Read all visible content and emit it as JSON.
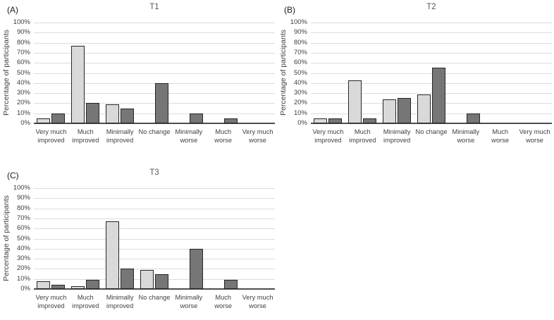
{
  "figure": {
    "background": "#ffffff",
    "colors": {
      "series_light_fill": "#d9d9d9",
      "series_dark_fill": "#767676",
      "bar_border": "#262626",
      "gridline": "#dcdcdc",
      "axis_line": "#4d4d4d",
      "title_color": "#595959",
      "text_color": "#404040"
    }
  },
  "chart_data": [
    {
      "type": "bar",
      "panel_label": "(A)",
      "title": "T1",
      "ylabel": "Percentage of participants",
      "xlabel": "",
      "ylim": [
        0,
        100
      ],
      "grid": true,
      "legend": "none",
      "y_ticks": [
        "0%",
        "10%",
        "20%",
        "30%",
        "40%",
        "50%",
        "60%",
        "70%",
        "80%",
        "90%",
        "100%"
      ],
      "categories": [
        "Very much improved",
        "Much improved",
        "Minimally improved",
        "No change",
        "Minimally worse",
        "Much worse",
        "Very much worse"
      ],
      "category_label_lines": [
        [
          "Very much",
          "improved"
        ],
        [
          "Much",
          "improved"
        ],
        [
          "Minimally",
          "improved"
        ],
        [
          "No change"
        ],
        [
          "Minimally",
          "worse"
        ],
        [
          "Much",
          "worse"
        ],
        [
          "Very much",
          "worse"
        ]
      ],
      "series": [
        {
          "name": "group-light-gray",
          "fill": "#d9d9d9",
          "values": [
            5,
            77,
            19,
            0,
            0,
            0,
            0
          ]
        },
        {
          "name": "group-dark-gray",
          "fill": "#767676",
          "values": [
            10,
            20,
            15,
            40,
            10,
            5,
            0
          ]
        }
      ]
    },
    {
      "type": "bar",
      "panel_label": "(B)",
      "title": "T2",
      "ylabel": "Percentage of participants",
      "xlabel": "",
      "ylim": [
        0,
        100
      ],
      "grid": true,
      "legend": "none",
      "y_ticks": [
        "0%",
        "10%",
        "20%",
        "30%",
        "40%",
        "50%",
        "60%",
        "70%",
        "80%",
        "90%",
        "100%"
      ],
      "categories": [
        "Very much improved",
        "Much improved",
        "Minimally improved",
        "No change",
        "Minimally worse",
        "Much worse",
        "Very much worse"
      ],
      "category_label_lines": [
        [
          "Very much",
          "improved"
        ],
        [
          "Much",
          "improved"
        ],
        [
          "Minimally",
          "improved"
        ],
        [
          "No change"
        ],
        [
          "Minimally",
          "worse"
        ],
        [
          "Much",
          "worse"
        ],
        [
          "Very much",
          "worse"
        ]
      ],
      "series": [
        {
          "name": "group-light-gray",
          "fill": "#d9d9d9",
          "values": [
            5,
            43,
            24,
            29,
            0,
            0,
            0
          ]
        },
        {
          "name": "group-dark-gray",
          "fill": "#767676",
          "values": [
            5,
            5,
            25,
            55,
            10,
            0,
            0
          ]
        }
      ]
    },
    {
      "type": "bar",
      "panel_label": "(C)",
      "title": "T3",
      "ylabel": "Percentage of participants",
      "xlabel": "",
      "ylim": [
        0,
        100
      ],
      "grid": true,
      "legend": "none",
      "y_ticks": [
        "0%",
        "10%",
        "20%",
        "30%",
        "40%",
        "50%",
        "60%",
        "70%",
        "80%",
        "90%",
        "100%"
      ],
      "categories": [
        "Very much improved",
        "Much improved",
        "Minimally improved",
        "No change",
        "Minimally worse",
        "Much worse",
        "Very much worse"
      ],
      "category_label_lines": [
        [
          "Very much",
          "improved"
        ],
        [
          "Much",
          "improved"
        ],
        [
          "Minimally",
          "improved"
        ],
        [
          "No change"
        ],
        [
          "Minimally",
          "worse"
        ],
        [
          "Much",
          "worse"
        ],
        [
          "Very much",
          "worse"
        ]
      ],
      "series": [
        {
          "name": "group-light-gray",
          "fill": "#d9d9d9",
          "values": [
            8,
            3,
            67,
            19,
            0,
            0,
            0
          ]
        },
        {
          "name": "group-dark-gray",
          "fill": "#767676",
          "values": [
            4,
            9,
            20,
            15,
            40,
            9,
            0
          ]
        }
      ]
    }
  ]
}
